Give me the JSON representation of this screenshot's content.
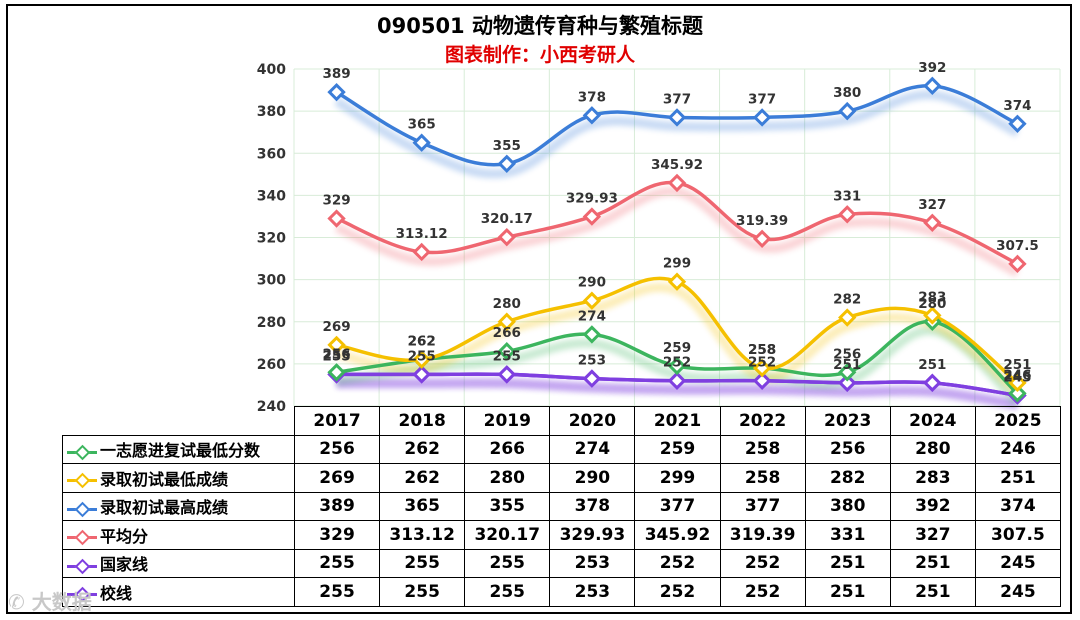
{
  "title": "090501 动物遗传育种与繁殖标题",
  "subtitle": "图表制作：小西考研人",
  "watermark": "✆ 大数据",
  "chart_data": {
    "type": "line",
    "categories": [
      "2017",
      "2018",
      "2019",
      "2020",
      "2021",
      "2022",
      "2023",
      "2024",
      "2025"
    ],
    "ylim": [
      240,
      400
    ],
    "yticks": [
      240,
      260,
      280,
      300,
      320,
      340,
      360,
      380,
      400
    ],
    "grid": true,
    "legend": "data-table",
    "series": [
      {
        "key": "s1",
        "name": "一志愿进复试最低分数",
        "color": "#3cb55e",
        "values": [
          256,
          262,
          266,
          274,
          259,
          258,
          256,
          280,
          246
        ],
        "labels": [
          "256",
          "262",
          "266",
          "274",
          "259",
          "258",
          "256",
          "280",
          "246"
        ]
      },
      {
        "key": "s2",
        "name": "录取初试最低成绩",
        "color": "#f5c000",
        "values": [
          269,
          262,
          280,
          290,
          299,
          258,
          282,
          283,
          251
        ],
        "labels": [
          "269",
          "262",
          "280",
          "290",
          "299",
          "258",
          "282",
          "283",
          "251"
        ]
      },
      {
        "key": "s3",
        "name": "录取初试最高成绩",
        "color": "#3b7dd8",
        "values": [
          389,
          365,
          355,
          378,
          377,
          377,
          380,
          392,
          374
        ],
        "labels": [
          "389",
          "365",
          "355",
          "378",
          "377",
          "377",
          "380",
          "392",
          "374"
        ]
      },
      {
        "key": "s4",
        "name": "平均分",
        "color": "#ef6670",
        "values": [
          329,
          313.12,
          320.17,
          329.93,
          345.92,
          319.39,
          331,
          327,
          307.5
        ],
        "labels": [
          "329",
          "313.12",
          "320.17",
          "329.93",
          "345.92",
          "319.39",
          "331",
          "327",
          "307.5"
        ]
      },
      {
        "key": "s5",
        "name": "国家线",
        "color": "#7f3fe0",
        "values": [
          255,
          255,
          255,
          253,
          252,
          252,
          251,
          251,
          245
        ],
        "labels": [
          "255",
          "255",
          "255",
          "253",
          "252",
          "252",
          "251",
          "251",
          "245"
        ]
      },
      {
        "key": "s6",
        "name": "校线",
        "color": "#7f3fe0",
        "values": [
          255,
          255,
          255,
          253,
          252,
          252,
          251,
          251,
          245
        ],
        "labels": [
          "255",
          "255",
          "255",
          "253",
          "252",
          "252",
          "251",
          "251",
          "245"
        ]
      }
    ]
  }
}
